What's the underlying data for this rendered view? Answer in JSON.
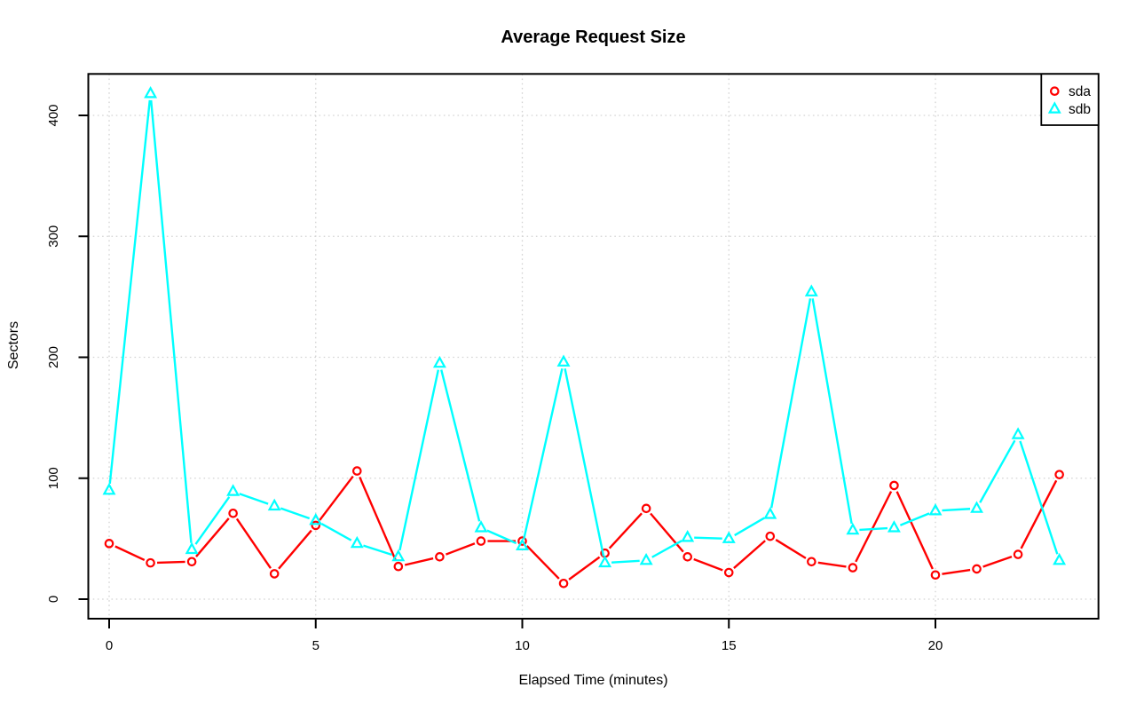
{
  "chart_data": {
    "type": "line",
    "title": "Average Request Size",
    "xlabel": "Elapsed Time (minutes)",
    "ylabel": "Sectors",
    "x": [
      0,
      1,
      2,
      3,
      4,
      5,
      6,
      7,
      8,
      9,
      10,
      11,
      12,
      13,
      14,
      15,
      16,
      17,
      18,
      19,
      20,
      21,
      22,
      23
    ],
    "series": [
      {
        "name": "sda",
        "color": "#ff0000",
        "marker": "circle",
        "values": [
          46,
          30,
          31,
          71,
          21,
          61,
          106,
          27,
          35,
          48,
          48,
          13,
          38,
          75,
          35,
          22,
          52,
          31,
          26,
          94,
          20,
          25,
          37,
          103
        ]
      },
      {
        "name": "sdb",
        "color": "#00ffff",
        "marker": "triangle",
        "values": [
          90,
          418,
          41,
          89,
          77,
          65,
          46,
          35,
          195,
          59,
          44,
          196,
          30,
          32,
          51,
          50,
          70,
          254,
          57,
          59,
          73,
          75,
          136,
          32
        ]
      }
    ],
    "xticks": [
      0,
      5,
      10,
      15,
      20
    ],
    "yticks": [
      0,
      100,
      200,
      300,
      400
    ],
    "xlim": [
      -0.5,
      23.95
    ],
    "ylim": [
      -16,
      435
    ],
    "grid": true,
    "grid_color": "#d3d3d3",
    "axis_color": "#000000",
    "background": "#ffffff",
    "legend_position": "topright"
  }
}
